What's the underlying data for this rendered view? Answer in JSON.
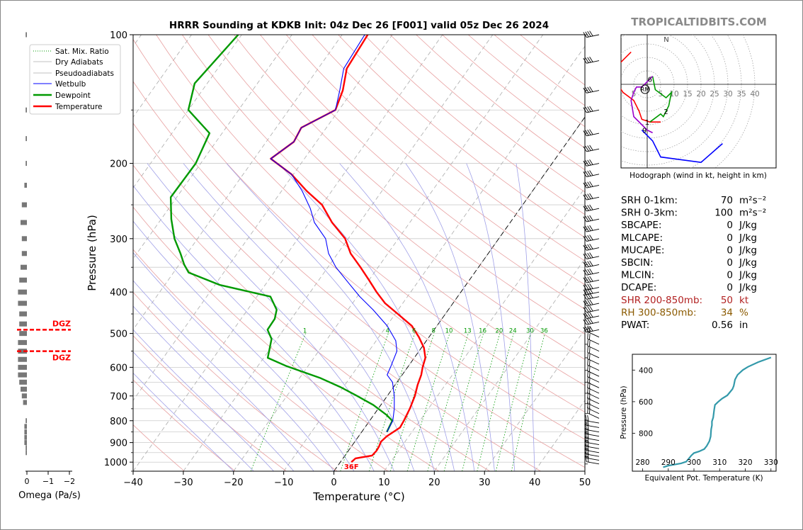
{
  "header": {
    "title": "HRRR Sounding at KDKB Init: 04z Dec 26 [F001] valid 05z Dec 26 2024",
    "watermark": "TROPICALTIDBITS.COM"
  },
  "colors": {
    "temperature": "#ff0000",
    "dewpoint": "#009900",
    "wetbulb": "#0000ff",
    "dry_adiabat": "#e8a0a0",
    "moist_adiabat": "#a0a0e8",
    "mixing_ratio": "#009900",
    "isotherm": "#999999",
    "hodo_0_3": "#ff0000",
    "hodo_3_6": "#009900",
    "hodo_6_9": "#9900cc",
    "hodo_9_12": "#0000ff",
    "theta_e": "#3399aa",
    "dgz": "#ff0000",
    "shr": "#b22222",
    "rh": "#8b5a00"
  },
  "chart_data": [
    {
      "type": "line",
      "subtype": "skew-t",
      "xlabel": "Temperature (°C)",
      "ylabel": "Pressure (hPa)",
      "xlim": [
        -40,
        50
      ],
      "ylim": [
        1050,
        100
      ],
      "x_ticks": [
        -40,
        -30,
        -20,
        -10,
        0,
        10,
        20,
        30,
        40,
        50
      ],
      "y_ticks": [
        100,
        200,
        300,
        400,
        500,
        600,
        700,
        800,
        900,
        1000
      ],
      "y_scale": "log",
      "grid": true,
      "legend_position": "upper-left",
      "legend": [
        "Sat. Mix. Ratio",
        "Dry Adiabats",
        "Pseudoadiabats",
        "Wetbulb",
        "Dewpoint",
        "Temperature"
      ],
      "mixing_ratio_labels": [
        "1",
        "4",
        "6",
        "8",
        "10",
        "13",
        "16",
        "20",
        "24",
        "30",
        "36"
      ],
      "surface_label": "36F",
      "series": [
        {
          "name": "Temperature",
          "points": [
            [
              2.2,
              1000
            ],
            [
              2.5,
              980
            ],
            [
              5.4,
              965
            ],
            [
              5.6,
              940
            ],
            [
              5.5,
              920
            ],
            [
              5.2,
              895
            ],
            [
              5.6,
              870
            ],
            [
              6.3,
              850
            ],
            [
              7.0,
              830
            ],
            [
              6.8,
              800
            ],
            [
              6.3,
              750
            ],
            [
              5.5,
              700
            ],
            [
              4.5,
              660
            ],
            [
              3.8,
              625
            ],
            [
              3.0,
              600
            ],
            [
              2.2,
              570
            ],
            [
              0.5,
              540
            ],
            [
              -2.0,
              510
            ],
            [
              -5.0,
              480
            ],
            [
              -9.5,
              450
            ],
            [
              -13.5,
              425
            ],
            [
              -16.8,
              400
            ],
            [
              -20,
              375
            ],
            [
              -23.5,
              350
            ],
            [
              -27.4,
              325
            ],
            [
              -30.6,
              300
            ],
            [
              -35.5,
              275
            ],
            [
              -40.0,
              250
            ],
            [
              -45.0,
              232
            ],
            [
              -50.4,
              212
            ],
            [
              -56.7,
              195
            ],
            [
              -54.5,
              178
            ],
            [
              -55.0,
              165
            ],
            [
              -50.7,
              150
            ],
            [
              -52.0,
              135
            ],
            [
              -54.3,
              120
            ],
            [
              -54.9,
              100
            ]
          ]
        },
        {
          "name": "Dewpoint",
          "points": [
            [
              5.0,
              850
            ],
            [
              4.5,
              800
            ],
            [
              2.5,
              775
            ],
            [
              -1.5,
              735
            ],
            [
              -6.0,
              700
            ],
            [
              -10.5,
              668
            ],
            [
              -16.0,
              635
            ],
            [
              -24.5,
              595
            ],
            [
              -29.2,
              570
            ],
            [
              -30.2,
              540
            ],
            [
              -31.1,
              515
            ],
            [
              -33.2,
              490
            ],
            [
              -33.3,
              462
            ],
            [
              -34.2,
              440
            ],
            [
              -37.3,
              410
            ],
            [
              -49.0,
              385
            ],
            [
              -57.0,
              360
            ],
            [
              -59.0,
              345
            ],
            [
              -61.3,
              325
            ],
            [
              -64.6,
              300
            ],
            [
              -68.0,
              270
            ],
            [
              -71.2,
              240
            ],
            [
              -71.0,
              200
            ],
            [
              -72.5,
              170
            ],
            [
              -80.0,
              150
            ],
            [
              -82.5,
              130
            ],
            [
              -80.7,
              100
            ]
          ]
        },
        {
          "name": "Wetbulb",
          "points": [
            [
              5.0,
              850
            ],
            [
              4.6,
              800
            ],
            [
              3.2,
              750
            ],
            [
              1.4,
              700
            ],
            [
              -0.9,
              650
            ],
            [
              -3.0,
              625
            ],
            [
              -3.4,
              600
            ],
            [
              -4.4,
              550
            ],
            [
              -6.1,
              520
            ],
            [
              -9.9,
              480
            ],
            [
              -15.0,
              440
            ],
            [
              -19.5,
              410
            ],
            [
              -23.8,
              380
            ],
            [
              -28.4,
              350
            ],
            [
              -31.8,
              325
            ],
            [
              -34.5,
              300
            ],
            [
              -39.0,
              275
            ],
            [
              -41.8,
              255
            ],
            [
              -45.9,
              232
            ],
            [
              -50.4,
              212
            ],
            [
              -56.7,
              195
            ],
            [
              -54.5,
              178
            ],
            [
              -55.0,
              165
            ],
            [
              -50.7,
              150
            ],
            [
              -52.6,
              135
            ],
            [
              -54.9,
              120
            ],
            [
              -55.5,
              100
            ]
          ]
        }
      ]
    },
    {
      "type": "line",
      "subtype": "hodograph",
      "caption": "Hodograph (wind in kt, height in km)",
      "ring_labels": [
        "5",
        "10",
        "15",
        "20",
        "25",
        "30",
        "35",
        "40"
      ],
      "center_label": "RM",
      "north_label": "N",
      "height_labels": [
        "1",
        "2",
        "6",
        "9"
      ],
      "series": [
        {
          "name": "0-3 km",
          "points": [
            [
              -6,
              12
            ],
            [
              -10,
              8
            ],
            [
              -11,
              0
            ],
            [
              -9,
              -3
            ],
            [
              -5,
              -6
            ],
            [
              -3,
              -10
            ],
            [
              -2,
              -13
            ],
            [
              1,
              -14
            ],
            [
              4,
              -14
            ],
            [
              5,
              -14
            ]
          ]
        },
        {
          "name": "3-6 km",
          "points": [
            [
              1,
              -14
            ],
            [
              5,
              -11
            ],
            [
              6,
              -12
            ],
            [
              8,
              -8
            ],
            [
              9,
              -3
            ],
            [
              7,
              -5
            ],
            [
              3,
              -2
            ],
            [
              2,
              3
            ]
          ]
        },
        {
          "name": "6-9 km",
          "points": [
            [
              2,
              3
            ],
            [
              1,
              2
            ],
            [
              -2,
              -1
            ],
            [
              -4,
              -1
            ],
            [
              -5,
              -3
            ],
            [
              -6,
              -6
            ],
            [
              -5,
              -12
            ],
            [
              -2,
              -15
            ],
            [
              0,
              -17
            ],
            [
              2,
              -18
            ]
          ]
        },
        {
          "name": "9-12 km",
          "points": [
            [
              -2,
              -17
            ],
            [
              2,
              -21
            ],
            [
              5,
              -27
            ],
            [
              20,
              -29
            ],
            [
              28,
              -22
            ]
          ]
        }
      ]
    },
    {
      "type": "line",
      "subtype": "theta-e profile",
      "xlabel": "Equivalent Pot. Temperature (K)",
      "ylabel": "Pressure (hPa)",
      "xlim": [
        276,
        332
      ],
      "ylim": [
        1040,
        300
      ],
      "x_ticks": [
        280,
        290,
        300,
        310,
        320,
        330
      ],
      "y_ticks": [
        400,
        600,
        800
      ],
      "series": [
        {
          "name": "Theta-E",
          "points": [
            [
              288,
              1015
            ],
            [
              290,
              1005
            ],
            [
              295,
              990
            ],
            [
              297,
              980
            ],
            [
              298,
              960
            ],
            [
              299,
              940
            ],
            [
              300,
              925
            ],
            [
              302,
              915
            ],
            [
              304,
              900
            ],
            [
              305,
              880
            ],
            [
              306,
              850
            ],
            [
              306.5,
              820
            ],
            [
              306.6,
              800
            ],
            [
              306.7,
              775
            ],
            [
              307,
              750
            ],
            [
              307,
              725
            ],
            [
              307.5,
              700
            ],
            [
              307.9,
              650
            ],
            [
              308.2,
              620
            ],
            [
              309.5,
              600
            ],
            [
              311,
              580
            ],
            [
              313,
              560
            ],
            [
              314,
              540
            ],
            [
              315,
              520
            ],
            [
              315.5,
              500
            ],
            [
              316,
              460
            ],
            [
              317,
              430
            ],
            [
              319,
              400
            ],
            [
              321,
              380
            ],
            [
              325,
              350
            ],
            [
              330,
              320
            ]
          ]
        }
      ]
    }
  ],
  "omega": {
    "xlabel": "Omega (Pa/s)",
    "x_ticks": [
      "0",
      "−1",
      "−2"
    ],
    "dgz_label": "DGZ",
    "dgz_pressures": [
      490,
      550
    ]
  },
  "stats": [
    {
      "label": "SRH 0-1km:",
      "value": "70",
      "unit": "m²s⁻²",
      "color": "#000000"
    },
    {
      "label": "SRH 0-3km:",
      "value": "100",
      "unit": "m²s⁻²",
      "color": "#000000"
    },
    {
      "label": "SBCAPE:",
      "value": "0",
      "unit": "J/kg",
      "color": "#000000"
    },
    {
      "label": "MLCAPE:",
      "value": "0",
      "unit": "J/kg",
      "color": "#000000"
    },
    {
      "label": "MUCAPE:",
      "value": "0",
      "unit": "J/kg",
      "color": "#000000"
    },
    {
      "label": "SBCIN:",
      "value": "0",
      "unit": "J/kg",
      "color": "#000000"
    },
    {
      "label": "MLCIN:",
      "value": "0",
      "unit": "J/kg",
      "color": "#000000"
    },
    {
      "label": "DCAPE:",
      "value": "0",
      "unit": "J/kg",
      "color": "#000000"
    },
    {
      "label": "SHR 200-850mb:",
      "value": "50",
      "unit": "kt",
      "color": "#b22222"
    },
    {
      "label": "RH 300-850mb:",
      "value": "34",
      "unit": "%",
      "color": "#8b5a00"
    },
    {
      "label": "PWAT:",
      "value": "0.56",
      "unit": "in",
      "color": "#000000"
    }
  ]
}
